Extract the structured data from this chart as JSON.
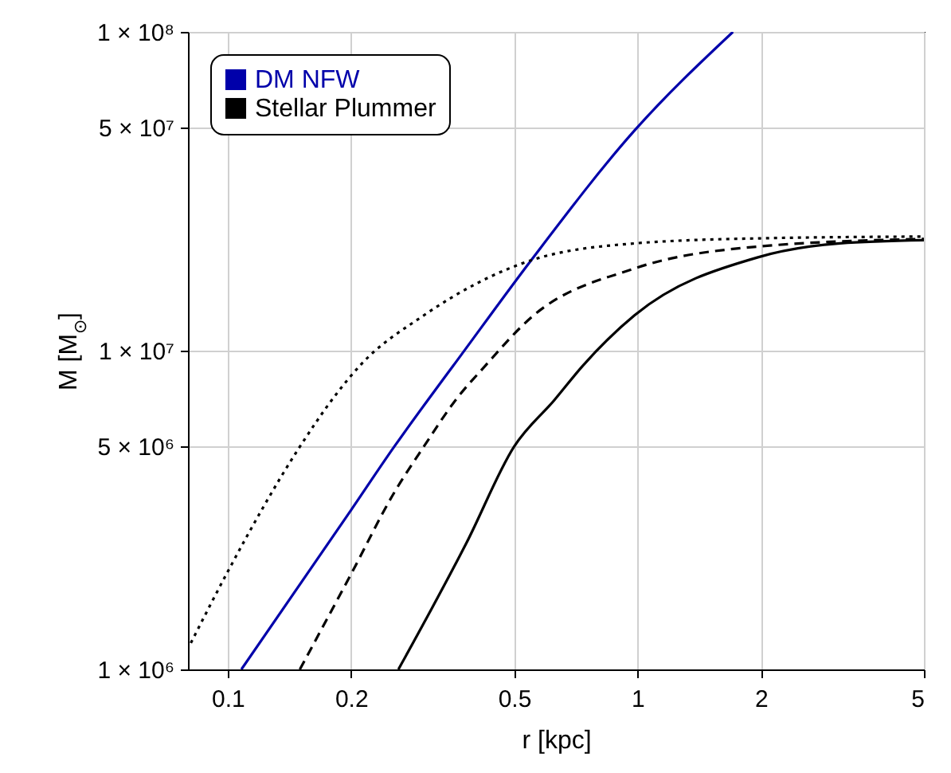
{
  "chart_data": {
    "type": "line",
    "xlabel": "r [kpc]",
    "ylabel": "M [M$_{⊙}$]",
    "log": "xy",
    "grid": true,
    "legend": "top left",
    "marker": "none",
    "xlim": [
      0.08,
      5
    ],
    "xticks": [
      0.1,
      0.2,
      0.5,
      1,
      2,
      5
    ],
    "ylim": [
      1000000,
      100000000
    ],
    "yticks": [
      {
        "value": 1000000,
        "label": "1 × 10⁶"
      },
      {
        "value": 5000000,
        "label": "5 × 10⁶"
      },
      {
        "value": 10000000,
        "label": "1 × 10⁷"
      },
      {
        "value": 50000000,
        "label": "5 × 10⁷"
      },
      {
        "value": 100000000,
        "label": "1 × 10⁸"
      }
    ],
    "series": [
      {
        "name": "DM NFW",
        "color": "#0000aa",
        "line_style": "solid",
        "x": [
          0.108,
          0.2,
          0.255,
          0.308,
          0.355,
          0.55,
          0.983,
          1.71
        ],
        "values": [
          1000000,
          3160000,
          5000000,
          7000000,
          8960000,
          19200000,
          49000000,
          100000000
        ]
      },
      {
        "name": "Stellar Plummer",
        "color": "#000000",
        "line_style": "solid",
        "x": [
          0.261,
          0.383,
          0.5,
          0.627,
          0.735,
          0.983,
          1.96,
          3.12,
          5
        ],
        "values": [
          1000000,
          2500000,
          5000000,
          7000000,
          8960000,
          12900000,
          19600000,
          21700000,
          22200000
        ]
      },
      {
        "color": "#000000",
        "line_style": "dashed",
        "x": [
          0.15,
          0.2,
          0.255,
          0.301,
          0.36,
          0.425,
          0.55,
          0.983,
          1.96,
          5
        ],
        "values": [
          1000000,
          1990000,
          3590000,
          5000000,
          7000000,
          8960000,
          12700000,
          18100000,
          21200000,
          22400000
        ]
      },
      {
        "color": "#000000",
        "line_style": "dotted",
        "x": [
          0.0813,
          0.0993,
          0.149,
          0.184,
          0.21,
          0.301,
          0.55,
          0.983,
          1.96,
          5
        ],
        "values": [
          1210000,
          1990000,
          4930000,
          7300000,
          8960000,
          12900000,
          19200000,
          21700000,
          22500000,
          22800000
        ]
      }
    ]
  }
}
